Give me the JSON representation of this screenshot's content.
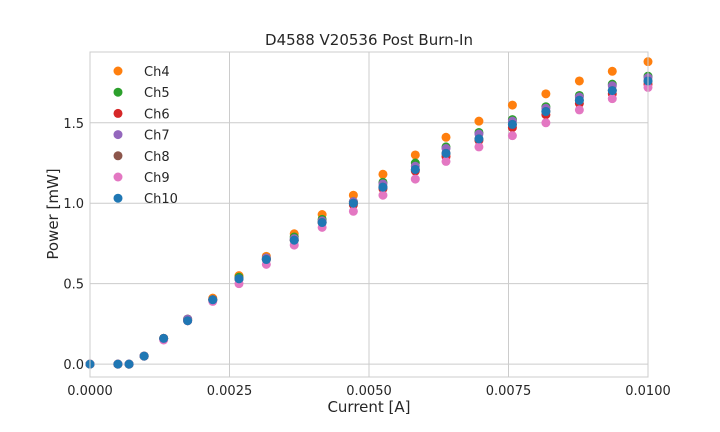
{
  "chart_data": {
    "type": "scatter",
    "title": "D4588 V20536 Post Burn-In",
    "xlabel": "Current [A]",
    "ylabel": "Power [mW]",
    "xlim": [
      0.0,
      0.01
    ],
    "ylim": [
      -0.08,
      1.94
    ],
    "xticks": [
      0.0,
      0.0025,
      0.005,
      0.0075,
      0.01
    ],
    "xtick_labels": [
      "0.0000",
      "0.0025",
      "0.0050",
      "0.0075",
      "0.0100"
    ],
    "yticks": [
      0.0,
      0.5,
      1.0,
      1.5
    ],
    "ytick_labels": [
      "0.0",
      "0.5",
      "1.0",
      "1.5"
    ],
    "grid": true,
    "legend": "top-left",
    "x": [
      0.0,
      0.0005,
      0.0007,
      0.00097,
      0.00132,
      0.00175,
      0.0022,
      0.00267,
      0.00316,
      0.00366,
      0.00416,
      0.00472,
      0.00525,
      0.00583,
      0.00638,
      0.00697,
      0.00757,
      0.00817,
      0.00877,
      0.00936,
      0.01
    ],
    "series": [
      {
        "name": "Ch4",
        "color": "#ff7f0e",
        "values": [
          0.0,
          0.0,
          0.0,
          0.05,
          0.16,
          0.28,
          0.41,
          0.55,
          0.67,
          0.81,
          0.93,
          1.05,
          1.18,
          1.3,
          1.41,
          1.51,
          1.61,
          1.68,
          1.76,
          1.82,
          1.88
        ]
      },
      {
        "name": "Ch5",
        "color": "#2ca02c",
        "values": [
          0.0,
          0.0,
          0.0,
          0.05,
          0.16,
          0.28,
          0.4,
          0.54,
          0.66,
          0.79,
          0.9,
          1.01,
          1.13,
          1.25,
          1.35,
          1.44,
          1.52,
          1.6,
          1.67,
          1.74,
          1.79
        ]
      },
      {
        "name": "Ch6",
        "color": "#d62728",
        "values": [
          0.0,
          0.0,
          0.0,
          0.05,
          0.16,
          0.27,
          0.4,
          0.53,
          0.65,
          0.77,
          0.88,
          0.99,
          1.09,
          1.2,
          1.29,
          1.39,
          1.47,
          1.55,
          1.62,
          1.68,
          1.74
        ]
      },
      {
        "name": "Ch7",
        "color": "#9467bd",
        "values": [
          0.0,
          0.0,
          0.0,
          0.05,
          0.16,
          0.28,
          0.4,
          0.53,
          0.66,
          0.78,
          0.89,
          1.01,
          1.12,
          1.23,
          1.34,
          1.43,
          1.51,
          1.59,
          1.66,
          1.73,
          1.78
        ]
      },
      {
        "name": "Ch8",
        "color": "#8c564b",
        "values": [
          0.0,
          0.0,
          0.0,
          0.05,
          0.16,
          0.27,
          0.4,
          0.53,
          0.65,
          0.77,
          0.88,
          1.0,
          1.1,
          1.21,
          1.31,
          1.4,
          1.49,
          1.57,
          1.64,
          1.7,
          1.76
        ]
      },
      {
        "name": "Ch9",
        "color": "#e377c2",
        "values": [
          0.0,
          0.0,
          0.0,
          0.05,
          0.15,
          0.27,
          0.39,
          0.5,
          0.62,
          0.74,
          0.85,
          0.95,
          1.05,
          1.15,
          1.26,
          1.35,
          1.42,
          1.5,
          1.58,
          1.65,
          1.72
        ]
      },
      {
        "name": "Ch10",
        "color": "#1f77b4",
        "values": [
          0.0,
          0.0,
          0.0,
          0.05,
          0.16,
          0.27,
          0.4,
          0.53,
          0.65,
          0.77,
          0.88,
          1.0,
          1.1,
          1.21,
          1.31,
          1.4,
          1.49,
          1.57,
          1.64,
          1.7,
          1.76
        ]
      }
    ]
  }
}
